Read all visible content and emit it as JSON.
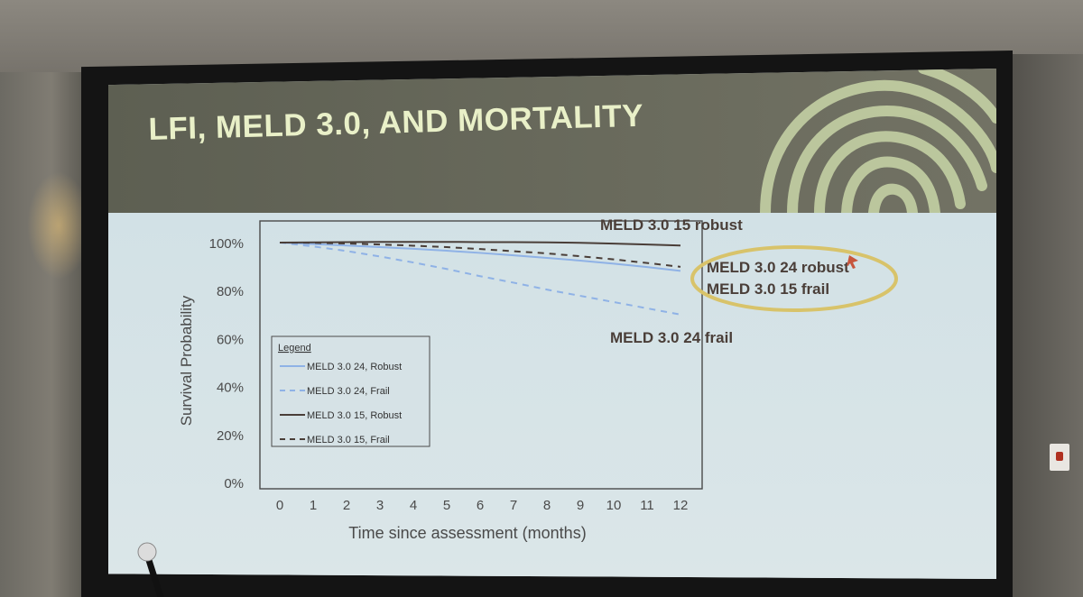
{
  "slide": {
    "title": "LFI, MELD 3.0, AND MORTALITY",
    "corner_text": ""
  },
  "colors": {
    "robust_24": "#8fb2e6",
    "frail_24": "#8fb2e6",
    "robust_15": "#4a3e38",
    "frail_15": "#4a3e38",
    "highlight_ellipse": "#d8c36a",
    "title": "#e9f0c8",
    "header_bg": "#646557"
  },
  "icons": {
    "header_graphic": "fingerprint-icon",
    "microphone": "microphone-icon"
  },
  "annotations": {
    "m15_robust": "MELD 3.0 15 robust",
    "m24_robust": "MELD 3.0 24 robust",
    "m15_frail": "MELD 3.0 15 frail",
    "m24_frail": "MELD 3.0 24 frail"
  },
  "chart_data": {
    "type": "line",
    "xlabel": "Time since assessment (months)",
    "ylabel": "Survival Probability",
    "x": [
      0,
      1,
      2,
      3,
      4,
      5,
      6,
      7,
      8,
      9,
      10,
      11,
      12
    ],
    "xlim": [
      0,
      12
    ],
    "ylim": [
      0,
      100
    ],
    "y_ticks": [
      "0%",
      "20%",
      "40%",
      "60%",
      "80%",
      "100%"
    ],
    "x_ticks": [
      "0",
      "1",
      "2",
      "3",
      "4",
      "5",
      "6",
      "7",
      "8",
      "9",
      "10",
      "11",
      "12"
    ],
    "legend_title": "Legend",
    "legend_position": "lower-left",
    "grid": false,
    "series": [
      {
        "name": "MELD 3.0 24, Robust",
        "style": "solid",
        "color": "#8fb2e6",
        "values": [
          100,
          99.4,
          98.8,
          98.1,
          97.4,
          96.6,
          95.7,
          94.7,
          93.6,
          92.5,
          91.2,
          89.8,
          88.2
        ]
      },
      {
        "name": "MELD 3.0 24, Frail",
        "style": "dashed",
        "color": "#8fb2e6",
        "values": [
          100,
          98.4,
          96.5,
          94.2,
          91.7,
          89.0,
          86.0,
          83.3,
          80.4,
          77.8,
          75.2,
          72.6,
          70.0
        ]
      },
      {
        "name": "MELD 3.0 15, Robust",
        "style": "solid",
        "color": "#4a3e38",
        "values": [
          100,
          100.1,
          100.2,
          100.3,
          100.3,
          100.3,
          100.2,
          100.2,
          100.1,
          99.9,
          99.6,
          99.2,
          98.8
        ]
      },
      {
        "name": "MELD 3.0 15, Frail",
        "style": "dashed",
        "color": "#4a3e38",
        "values": [
          100,
          99.9,
          99.6,
          99.2,
          98.7,
          98.1,
          97.3,
          96.4,
          95.5,
          94.3,
          93.0,
          91.5,
          89.9
        ]
      }
    ]
  }
}
